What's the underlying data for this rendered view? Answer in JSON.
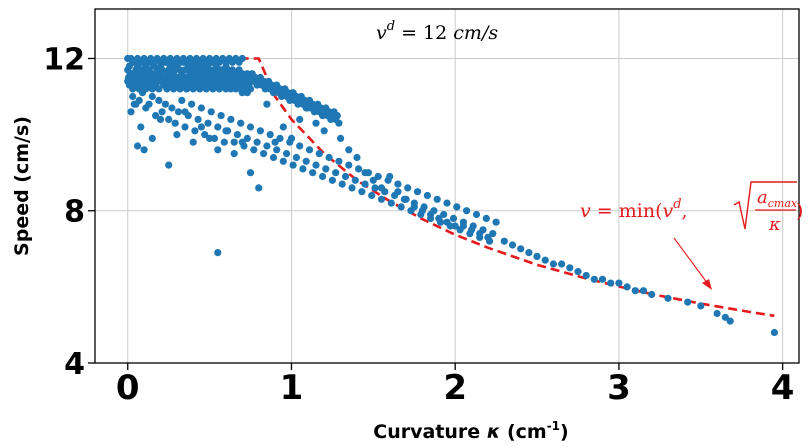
{
  "chart_data": {
    "type": "scatter",
    "xlabel": "Curvature",
    "xlabel_symbol": "κ",
    "xlabel_unit_base": "(cm",
    "xlabel_unit_exp": "-1",
    "xlabel_unit_close": ")",
    "ylabel": "Speed (cm/s)",
    "xlim": [
      -0.2,
      4.1
    ],
    "ylim": [
      4,
      13.3
    ],
    "x_ticks": [
      "0",
      "1",
      "2",
      "3",
      "4"
    ],
    "y_ticks": [
      "4",
      "8",
      "12"
    ],
    "grid": true,
    "colors": {
      "points": "#1f77b4",
      "model": "#e41a1c"
    },
    "annotations": {
      "top": {
        "sym": "v",
        "sup": "d",
        "eq": " = 12 ",
        "unit": "cm/s"
      },
      "model": {
        "lhs": "v = ",
        "min": "min(",
        "vd_sym": "v",
        "vd_sup": "d",
        "comma": ",",
        "num": "a",
        "num_sub": "cmax",
        "den": "κ",
        "close": ")"
      }
    },
    "series": [
      {
        "type": "line",
        "style": "dashed",
        "x": [
          0,
          0.25,
          0.5,
          0.8,
          0.9,
          1.0,
          1.2,
          1.4,
          1.6,
          1.8,
          2.0,
          2.2,
          2.5,
          2.8,
          3.0,
          3.2,
          3.5,
          3.8,
          3.95
        ],
        "y": [
          12,
          12,
          12,
          12,
          11.0,
          10.4,
          9.5,
          8.8,
          8.25,
          7.78,
          7.37,
          7.03,
          6.58,
          6.22,
          6.01,
          5.81,
          5.56,
          5.34,
          5.24
        ]
      },
      {
        "type": "scatter",
        "x": [
          0.0,
          0.01,
          0.02,
          0.03,
          0.04,
          0.05,
          0.06,
          0.07,
          0.08,
          0.09,
          0.1,
          0.11,
          0.12,
          0.13,
          0.14,
          0.15,
          0.16,
          0.17,
          0.18,
          0.19,
          0.2,
          0.21,
          0.22,
          0.23,
          0.24,
          0.25,
          0.26,
          0.27,
          0.28,
          0.29,
          0.3,
          0.31,
          0.32,
          0.33,
          0.34,
          0.35,
          0.36,
          0.37,
          0.38,
          0.39,
          0.4,
          0.41,
          0.42,
          0.43,
          0.44,
          0.45,
          0.46,
          0.47,
          0.48,
          0.49,
          0.5,
          0.51,
          0.52,
          0.53,
          0.54,
          0.55,
          0.56,
          0.57,
          0.58,
          0.59,
          0.6,
          0.61,
          0.62,
          0.63,
          0.64,
          0.65,
          0.66,
          0.67,
          0.68,
          0.69,
          0.7,
          0.71,
          0.72,
          0.73,
          0.74,
          0.75,
          0.76,
          0.77,
          0.78,
          0.79,
          0.8,
          0.81,
          0.82,
          0.83,
          0.84,
          0.85,
          0.86,
          0.87,
          0.88,
          0.89,
          0.9,
          0.91,
          0.92,
          0.93,
          0.94,
          0.95,
          0.96,
          0.97,
          0.98,
          0.99,
          1.0,
          1.01,
          1.02,
          1.03,
          1.04,
          1.05,
          1.06,
          1.07,
          1.08,
          1.09,
          1.1,
          1.11,
          1.12,
          1.13,
          1.14,
          1.15,
          1.16,
          1.17,
          1.18,
          1.19,
          1.2,
          1.21,
          1.22,
          1.23,
          1.24,
          1.25,
          1.26,
          1.27,
          1.28,
          1.29,
          0.0,
          0.01,
          0.02,
          0.03,
          0.04,
          0.05,
          0.06,
          0.07,
          0.08,
          0.09,
          0.1,
          0.11,
          0.12,
          0.13,
          0.14,
          0.15,
          0.16,
          0.17,
          0.18,
          0.19,
          0.2,
          0.21,
          0.22,
          0.23,
          0.24,
          0.25,
          0.26,
          0.27,
          0.28,
          0.29,
          0.3,
          0.31,
          0.32,
          0.33,
          0.34,
          0.35,
          0.36,
          0.37,
          0.38,
          0.39,
          0.4,
          0.41,
          0.42,
          0.43,
          0.44,
          0.45,
          0.46,
          0.47,
          0.48,
          0.49,
          0.5,
          0.51,
          0.52,
          0.53,
          0.54,
          0.55,
          0.56,
          0.57,
          0.58,
          0.59,
          0.6,
          0.61,
          0.62,
          0.63,
          0.64,
          0.65,
          0.66,
          0.67,
          0.68,
          0.69,
          0.7,
          0.71,
          0.72,
          0.73,
          0.74,
          0.75,
          0.0,
          0.02,
          0.04,
          0.06,
          0.08,
          0.1,
          0.12,
          0.14,
          0.16,
          0.18,
          0.2,
          0.22,
          0.24,
          0.26,
          0.28,
          0.3,
          0.32,
          0.34,
          0.36,
          0.38,
          0.4,
          0.42,
          0.44,
          0.46,
          0.48,
          0.5,
          0.52,
          0.54,
          0.56,
          0.58,
          0.6,
          0.62,
          0.64,
          0.66,
          0.68,
          0.7,
          0.005,
          0.015,
          0.025,
          0.035,
          0.045,
          0.055,
          0.065,
          0.075,
          0.085,
          0.095,
          0.105,
          0.115,
          0.125,
          0.135,
          0.145,
          0.155,
          0.165,
          0.175,
          0.185,
          0.195,
          0.03,
          0.05,
          0.07,
          0.09,
          0.11,
          0.13,
          0.15,
          0.17,
          0.19,
          0.21,
          0.23,
          0.25,
          0.27,
          0.29,
          0.31,
          0.33,
          0.35,
          0.37,
          0.39,
          0.41,
          0.43,
          0.45,
          0.47,
          0.49,
          0.51,
          0.53,
          0.55,
          0.57,
          0.59,
          0.61,
          0.63,
          0.65,
          0.67,
          0.69,
          0.71,
          0.73,
          0.75,
          0.77,
          0.79,
          0.81,
          0.83,
          0.85,
          0.87,
          0.89,
          0.91,
          0.93,
          0.95,
          0.97,
          0.99,
          1.01,
          1.03,
          1.05,
          1.07,
          1.09,
          1.11,
          1.13,
          1.15,
          1.17,
          1.19,
          1.21,
          1.23,
          1.25,
          1.27,
          1.29,
          1.31,
          1.33,
          1.35,
          1.37,
          1.39,
          1.41,
          1.43,
          1.45,
          1.47,
          1.49,
          1.51,
          1.53,
          1.55,
          1.57,
          1.59,
          1.61,
          1.63,
          1.65,
          1.67,
          1.69,
          1.71,
          1.73,
          1.75,
          1.77,
          1.79,
          1.81,
          1.83,
          1.85,
          1.87,
          1.89,
          1.91,
          1.93,
          1.95,
          1.97,
          1.99,
          2.01,
          2.03,
          2.05,
          2.07,
          2.09,
          2.11,
          2.13,
          2.15,
          2.17,
          2.19,
          2.21,
          2.23,
          2.25,
          0.02,
          0.04,
          0.06,
          0.08,
          0.1,
          0.15,
          0.2,
          0.25,
          0.3,
          0.35,
          0.4,
          0.45,
          0.5,
          0.55,
          0.6,
          0.65,
          0.7,
          0.75,
          0.8,
          0.85,
          0.9,
          0.95,
          1.0,
          1.05,
          1.1,
          1.15,
          1.2,
          1.25,
          1.3,
          1.35,
          1.4,
          1.45,
          1.5,
          1.55,
          1.6,
          1.65,
          1.7,
          1.75,
          1.8,
          1.85,
          1.9,
          1.95,
          2.0,
          2.05,
          2.1,
          2.15,
          2.2,
          0.55,
          2.3,
          2.35,
          2.4,
          2.45,
          2.5,
          2.55,
          2.6,
          2.65,
          2.7,
          2.75,
          2.8,
          2.85,
          2.9,
          2.95,
          3.0,
          3.05,
          3.1,
          3.15,
          3.2,
          3.3,
          3.42,
          3.5,
          3.6,
          3.65,
          3.68,
          3.95
        ],
        "y": [
          11.7,
          11.8,
          11.6,
          11.9,
          11.5,
          11.7,
          11.8,
          11.6,
          11.9,
          11.7,
          11.5,
          11.8,
          11.6,
          11.7,
          11.9,
          11.6,
          11.8,
          11.5,
          11.7,
          11.6,
          11.8,
          11.7,
          11.5,
          11.9,
          11.6,
          11.7,
          11.8,
          11.5,
          11.6,
          11.7,
          11.8,
          11.5,
          11.7,
          11.6,
          11.9,
          11.7,
          11.5,
          11.8,
          11.6,
          11.7,
          11.6,
          11.8,
          11.5,
          11.7,
          11.6,
          11.8,
          11.7,
          11.5,
          11.6,
          11.8,
          11.7,
          11.5,
          11.6,
          11.7,
          11.8,
          11.5,
          11.6,
          11.7,
          11.5,
          11.6,
          11.8,
          11.7,
          11.5,
          11.6,
          11.7,
          11.5,
          11.6,
          11.4,
          11.7,
          11.5,
          11.6,
          11.4,
          11.5,
          11.6,
          11.4,
          11.5,
          11.6,
          11.4,
          11.5,
          11.3,
          11.4,
          11.5,
          11.3,
          11.4,
          11.2,
          11.3,
          11.4,
          11.2,
          11.3,
          11.1,
          11.2,
          11.3,
          11.1,
          11.2,
          11.0,
          11.1,
          11.2,
          11.0,
          11.1,
          10.9,
          11.0,
          11.1,
          10.9,
          11.0,
          10.8,
          10.9,
          11.0,
          10.8,
          10.9,
          10.7,
          10.8,
          10.9,
          10.7,
          10.8,
          10.6,
          10.7,
          10.8,
          10.6,
          10.7,
          10.5,
          10.6,
          10.7,
          10.5,
          10.6,
          10.4,
          10.5,
          10.6,
          10.4,
          10.5,
          10.3,
          11.4,
          11.3,
          11.5,
          11.2,
          11.4,
          11.3,
          11.6,
          11.2,
          11.4,
          11.3,
          11.5,
          11.2,
          11.4,
          11.3,
          11.5,
          11.2,
          11.4,
          11.3,
          11.6,
          11.2,
          11.4,
          11.5,
          11.3,
          11.4,
          11.2,
          11.5,
          11.3,
          11.4,
          11.2,
          11.5,
          11.3,
          11.4,
          11.2,
          11.5,
          11.3,
          11.4,
          11.2,
          11.5,
          11.3,
          11.4,
          11.2,
          11.5,
          11.3,
          11.4,
          11.2,
          11.5,
          11.3,
          11.4,
          11.2,
          11.5,
          11.3,
          11.4,
          11.2,
          11.5,
          11.3,
          11.4,
          11.2,
          11.5,
          11.3,
          11.4,
          11.2,
          11.4,
          11.3,
          11.2,
          11.4,
          11.3,
          11.2,
          11.4,
          11.3,
          11.2,
          11.1,
          11.3,
          11.2,
          11.1,
          11.3,
          11.2,
          12.0,
          12.0,
          11.9,
          12.0,
          11.9,
          12.0,
          11.9,
          12.0,
          11.9,
          12.0,
          11.9,
          12.0,
          11.9,
          12.0,
          11.9,
          12.0,
          11.9,
          12.0,
          11.9,
          12.0,
          11.9,
          12.0,
          11.9,
          12.0,
          11.9,
          12.0,
          11.9,
          12.0,
          11.9,
          12.0,
          11.9,
          12.0,
          11.9,
          12.0,
          11.9,
          12.0,
          11.5,
          11.6,
          11.4,
          11.5,
          11.6,
          11.4,
          11.5,
          11.6,
          11.4,
          11.5,
          11.6,
          11.4,
          11.5,
          11.6,
          11.4,
          11.5,
          11.6,
          11.4,
          11.5,
          11.6,
          11.0,
          10.8,
          10.9,
          11.1,
          10.7,
          10.8,
          11.0,
          10.5,
          10.9,
          10.6,
          10.8,
          10.4,
          10.7,
          10.3,
          10.6,
          10.9,
          10.2,
          10.5,
          10.8,
          10.1,
          10.4,
          10.7,
          10.0,
          10.3,
          10.6,
          9.9,
          10.2,
          10.5,
          9.8,
          10.1,
          10.4,
          9.8,
          10.0,
          10.3,
          9.7,
          9.9,
          10.2,
          9.6,
          9.8,
          10.1,
          9.5,
          9.7,
          10.0,
          9.4,
          9.6,
          9.9,
          9.3,
          9.5,
          9.8,
          9.2,
          9.4,
          9.7,
          9.1,
          9.3,
          9.6,
          9.0,
          9.2,
          9.5,
          8.9,
          9.1,
          9.4,
          8.8,
          9.0,
          9.3,
          8.7,
          8.9,
          9.2,
          8.6,
          8.8,
          9.1,
          8.5,
          8.7,
          9.0,
          8.4,
          8.6,
          8.9,
          8.3,
          8.5,
          8.8,
          8.2,
          8.4,
          8.7,
          8.1,
          8.3,
          8.6,
          8.0,
          8.2,
          8.5,
          7.9,
          8.1,
          8.4,
          7.8,
          8.0,
          8.3,
          7.7,
          7.9,
          8.2,
          7.6,
          7.8,
          8.1,
          7.5,
          7.7,
          8.0,
          7.4,
          7.6,
          7.9,
          7.3,
          7.5,
          7.8,
          7.2,
          7.4,
          7.7,
          10.6,
          10.8,
          9.7,
          10.2,
          9.6,
          9.9,
          10.4,
          9.2,
          10.0,
          10.6,
          9.8,
          10.2,
          9.9,
          9.6,
          10.1,
          9.5,
          9.8,
          9.0,
          8.6,
          10.8,
          9.8,
          10.2,
          9.9,
          10.4,
          10.7,
          10.3,
          10.1,
          10.5,
          9.9,
          9.6,
          9.4,
          9.0,
          8.8,
          8.6,
          8.9,
          8.5,
          8.3,
          8.1,
          8.0,
          7.9,
          7.8,
          7.7,
          7.6,
          7.6,
          7.5,
          7.4,
          7.3,
          6.9,
          7.2,
          7.1,
          7.0,
          6.9,
          6.8,
          6.7,
          6.6,
          6.6,
          6.5,
          6.4,
          6.3,
          6.2,
          6.2,
          6.1,
          6.1,
          6.0,
          5.9,
          5.9,
          5.8,
          5.7,
          5.6,
          5.5,
          5.3,
          5.2,
          5.1,
          4.8
        ]
      }
    ]
  }
}
